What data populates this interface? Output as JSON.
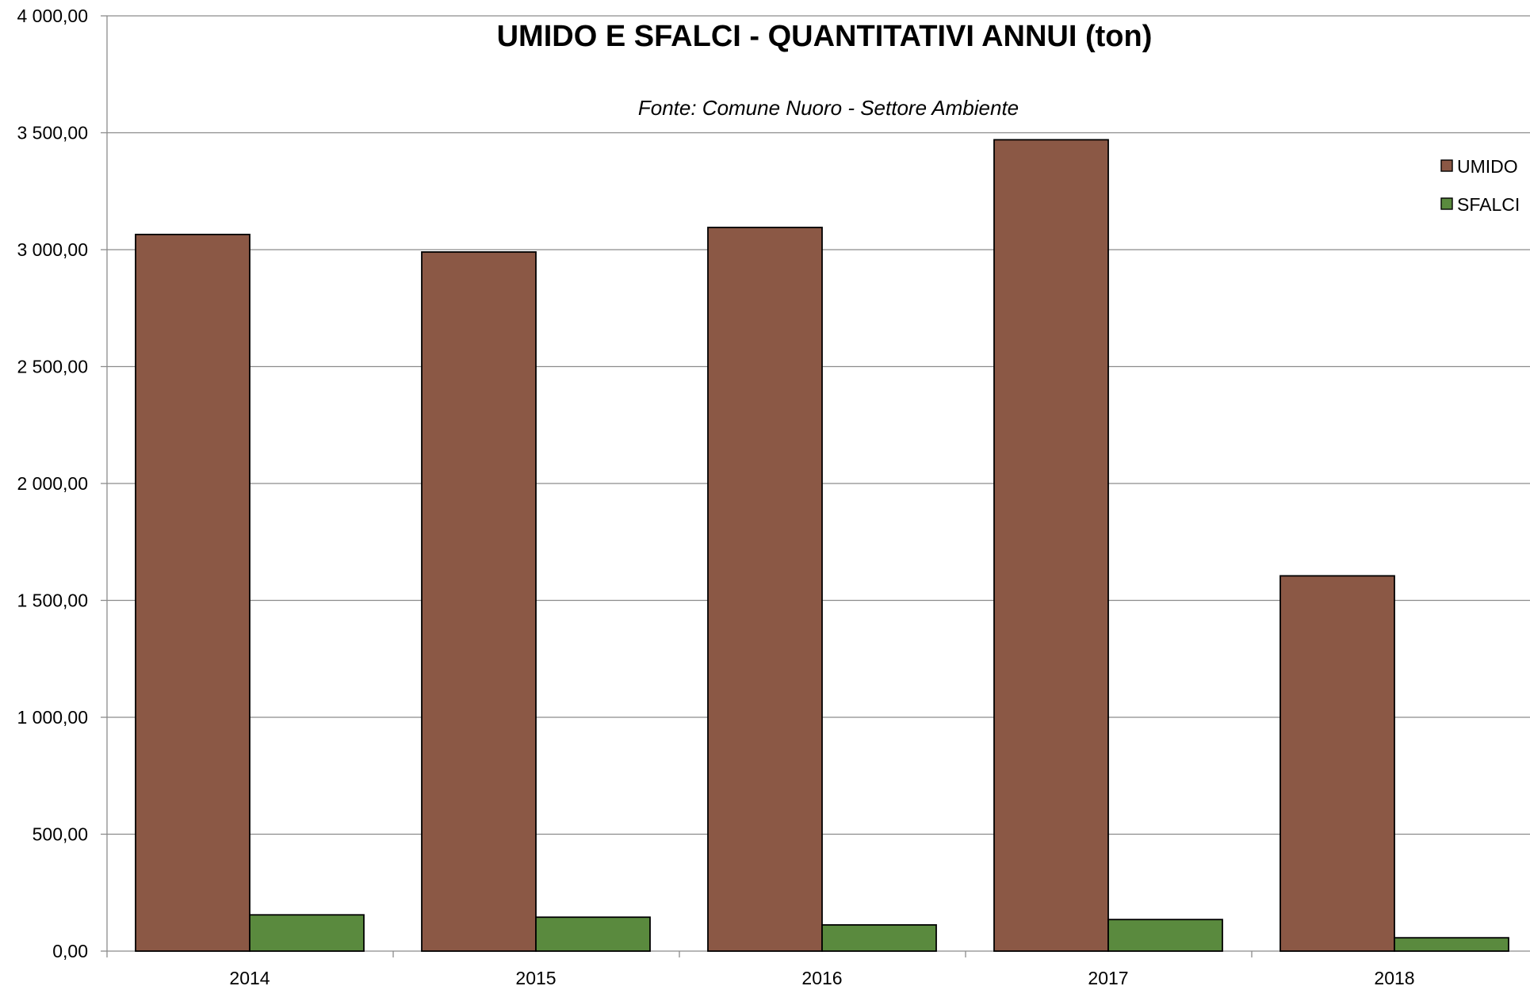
{
  "chart_data": {
    "type": "bar",
    "title": "UMIDO E SFALCI - QUANTITATIVI ANNUI (ton)",
    "subtitle": "Fonte: Comune Nuoro - Settore Ambiente",
    "xlabel": "",
    "ylabel": "",
    "categories": [
      "2014",
      "2015",
      "2016",
      "2017",
      "2018"
    ],
    "series": [
      {
        "name": "UMIDO",
        "color": "#8B5845",
        "values": [
          3065,
          2990,
          3095,
          3470,
          1605
        ]
      },
      {
        "name": "SFALCI",
        "color": "#5A8A3E",
        "values": [
          155,
          145,
          112,
          135,
          57
        ]
      }
    ],
    "ylim": [
      0,
      4000
    ],
    "yticks": [
      0,
      500,
      1000,
      1500,
      2000,
      2500,
      3000,
      3500,
      4000
    ],
    "ytick_labels": [
      "0,00",
      "500,00",
      "1 000,00",
      "1 500,00",
      "2 000,00",
      "2 500,00",
      "3 000,00",
      "3 500,00",
      "4 000,00"
    ],
    "grid": true,
    "legend_position": "top-right"
  }
}
